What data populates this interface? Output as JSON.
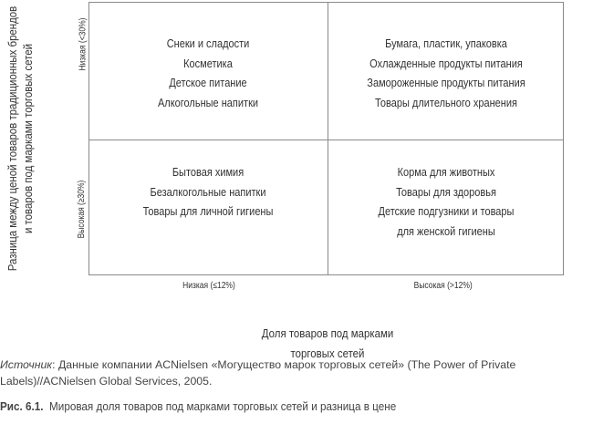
{
  "y_axis": {
    "title_lines": [
      "Разница между ценой товаров традиционных брендов",
      "и товаров под марками торговых сетей"
    ],
    "low": "Низкая (<30%)",
    "high": "Высокая (≥30%)"
  },
  "x_axis": {
    "title_lines": [
      "Доля товаров под марками",
      "торговых сетей"
    ],
    "low": "Низкая (≤12%)",
    "high": "Высокая (>12%)"
  },
  "quadrants": {
    "top_left": [
      "Снеки и сладости",
      "Косметика",
      "Детское питание",
      "Алкогольные напитки"
    ],
    "top_right": [
      "Бумага, пластик, упаковка",
      "Охлажденные продукты питания",
      "Замороженные продукты питания",
      "Товары длительного хранения"
    ],
    "bottom_left": [
      "Бытовая химия",
      "Безалкогольные напитки",
      "Товары для личной гигиены"
    ],
    "bottom_right": [
      "Корма для животных",
      "Товары для здоровья",
      "Детские подгузники и товары",
      "для женской гигиены"
    ]
  },
  "source": {
    "label": "Источник",
    "text": ": Данные компании ACNielsen «Могущество марок торговых сетей» (The Power of Private Labels)//ACNielsen Global Services, 2005."
  },
  "caption": {
    "number": "Рис. 6.1.",
    "text": "Мировая доля товаров под марками торговых сетей и разница в цене"
  }
}
